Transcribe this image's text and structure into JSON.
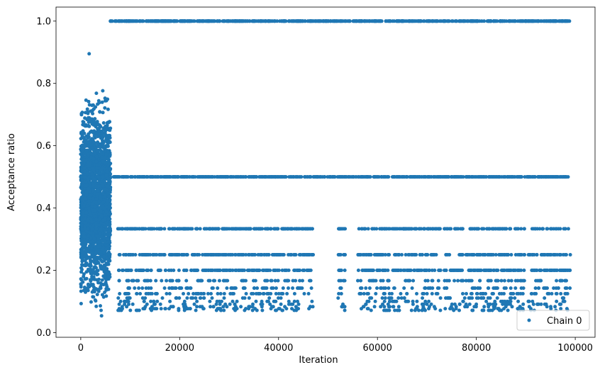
{
  "chart_data": {
    "type": "scatter",
    "xlabel": "Iteration",
    "ylabel": "Acceptance ratio",
    "xlim": [
      -5000,
      104000
    ],
    "ylim": [
      -0.015,
      1.045
    ],
    "xticks": [
      0,
      20000,
      40000,
      60000,
      80000,
      100000
    ],
    "xtick_labels": [
      "0",
      "20000",
      "40000",
      "60000",
      "80000",
      "100000"
    ],
    "yticks": [
      0.0,
      0.2,
      0.4,
      0.6,
      0.8,
      1.0
    ],
    "ytick_labels": [
      "0.0",
      "0.2",
      "0.4",
      "0.6",
      "0.8",
      "1.0"
    ],
    "grid": false,
    "legend_position": "lower right",
    "series": [
      {
        "name": "Chain 0",
        "color": "#1f77b4",
        "marker": "circle",
        "description_of_pattern": {
          "burn_in_end": 6000,
          "burn_in_y_range": [
            0.03,
            0.9
          ],
          "burn_in_peak_max": 0.895,
          "burn_in_peak_x": 1700,
          "x_end": 99000,
          "levels": [
            1.0,
            0.5,
            0.3333,
            0.25,
            0.2,
            0.1667,
            0.1429,
            0.125,
            0.1111,
            0.1,
            0.0909,
            0.0833,
            0.0769,
            0.0714
          ],
          "gaps_level_0_25": [
            [
              47000,
              52000
            ],
            [
              53500,
              56000
            ],
            [
              72800,
              73500
            ],
            [
              89800,
              90500
            ]
          ]
        }
      }
    ]
  }
}
